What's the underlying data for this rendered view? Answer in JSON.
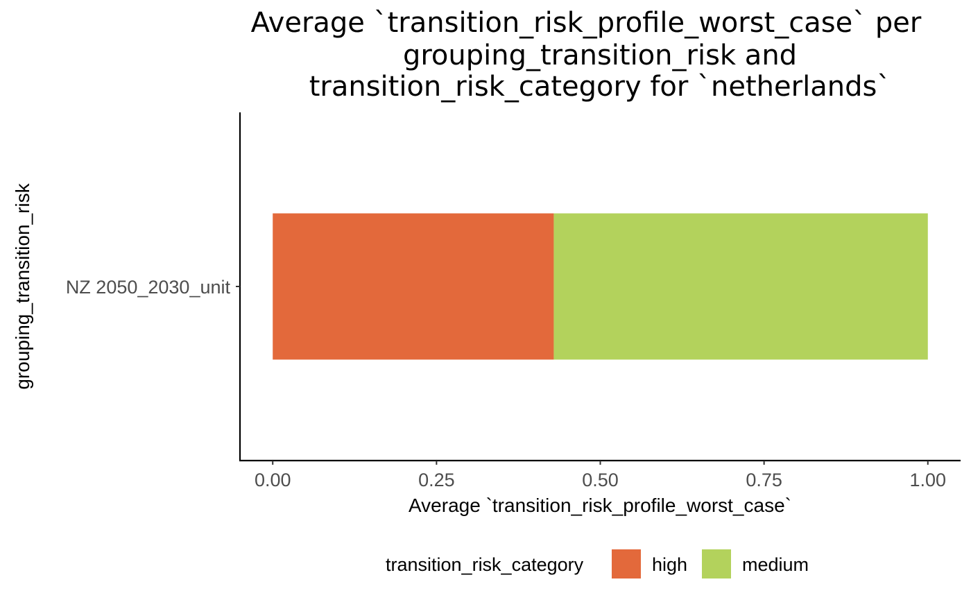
{
  "chart_data": {
    "type": "bar",
    "orientation": "horizontal",
    "stacked": true,
    "title_lines": [
      "Average `transition_risk_profile_worst_case` per",
      "grouping_transition_risk and",
      "transition_risk_category for `netherlands`"
    ],
    "xlabel": "Average `transition_risk_profile_worst_case`",
    "ylabel": "grouping_transition_risk",
    "categories": [
      "NZ 2050_2030_unit"
    ],
    "series": [
      {
        "name": "high",
        "values": [
          0.429
        ],
        "color": "#E3693B"
      },
      {
        "name": "medium",
        "values": [
          0.571
        ],
        "color": "#B3D25C"
      }
    ],
    "xlim": [
      -0.05,
      1.05
    ],
    "xticks": [
      0.0,
      0.25,
      0.5,
      0.75,
      1.0
    ],
    "xtick_labels": [
      "0.00",
      "0.25",
      "0.50",
      "0.75",
      "1.00"
    ],
    "grid": false,
    "legend": {
      "title": "transition_risk_category",
      "placement": "bottom",
      "entries": [
        "high",
        "medium"
      ]
    }
  }
}
